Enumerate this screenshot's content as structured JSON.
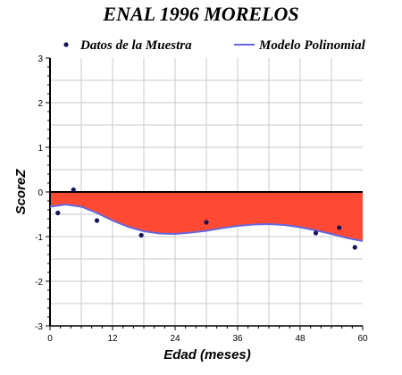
{
  "chart_data": {
    "type": "line",
    "title": "ENAL 1996 MORELOS",
    "xlabel": "Edad (meses)",
    "ylabel": "ScoreZ",
    "xlim": [
      0,
      60
    ],
    "ylim": [
      -3,
      3
    ],
    "x_ticks": [
      0,
      12,
      24,
      36,
      48,
      60
    ],
    "y_ticks": [
      -3,
      -2,
      -1,
      0,
      1,
      2,
      3
    ],
    "x_tick_labels": [
      "0",
      "12",
      "24",
      "36",
      "48",
      "60"
    ],
    "y_tick_labels": [
      "-3",
      "-2",
      "-1",
      "0",
      "1",
      "2",
      "3"
    ],
    "grid": true,
    "legend_position": "top",
    "series": [
      {
        "name": "Datos de la Muestra",
        "kind": "scatter",
        "color": "#14145a",
        "points": [
          {
            "x": 1.5,
            "y": -0.47
          },
          {
            "x": 4.5,
            "y": 0.05
          },
          {
            "x": 9,
            "y": -0.64
          },
          {
            "x": 17.5,
            "y": -0.97
          },
          {
            "x": 30,
            "y": -0.68
          },
          {
            "x": 51,
            "y": -0.92
          },
          {
            "x": 55.5,
            "y": -0.8
          },
          {
            "x": 58.5,
            "y": -1.24
          }
        ]
      },
      {
        "name": "Modelo Polinomial",
        "kind": "line",
        "color": "#6666dd",
        "fill_to_zero_color": "#ff4a33",
        "points": [
          {
            "x": 0,
            "y": -0.33
          },
          {
            "x": 3,
            "y": -0.28
          },
          {
            "x": 6,
            "y": -0.33
          },
          {
            "x": 9,
            "y": -0.47
          },
          {
            "x": 12,
            "y": -0.64
          },
          {
            "x": 15,
            "y": -0.78
          },
          {
            "x": 18,
            "y": -0.88
          },
          {
            "x": 21,
            "y": -0.93
          },
          {
            "x": 24,
            "y": -0.94
          },
          {
            "x": 27,
            "y": -0.91
          },
          {
            "x": 30,
            "y": -0.87
          },
          {
            "x": 33,
            "y": -0.81
          },
          {
            "x": 36,
            "y": -0.76
          },
          {
            "x": 39,
            "y": -0.73
          },
          {
            "x": 42,
            "y": -0.72
          },
          {
            "x": 45,
            "y": -0.74
          },
          {
            "x": 48,
            "y": -0.79
          },
          {
            "x": 51,
            "y": -0.86
          },
          {
            "x": 54,
            "y": -0.94
          },
          {
            "x": 57,
            "y": -1.03
          },
          {
            "x": 60,
            "y": -1.1
          }
        ]
      }
    ]
  }
}
